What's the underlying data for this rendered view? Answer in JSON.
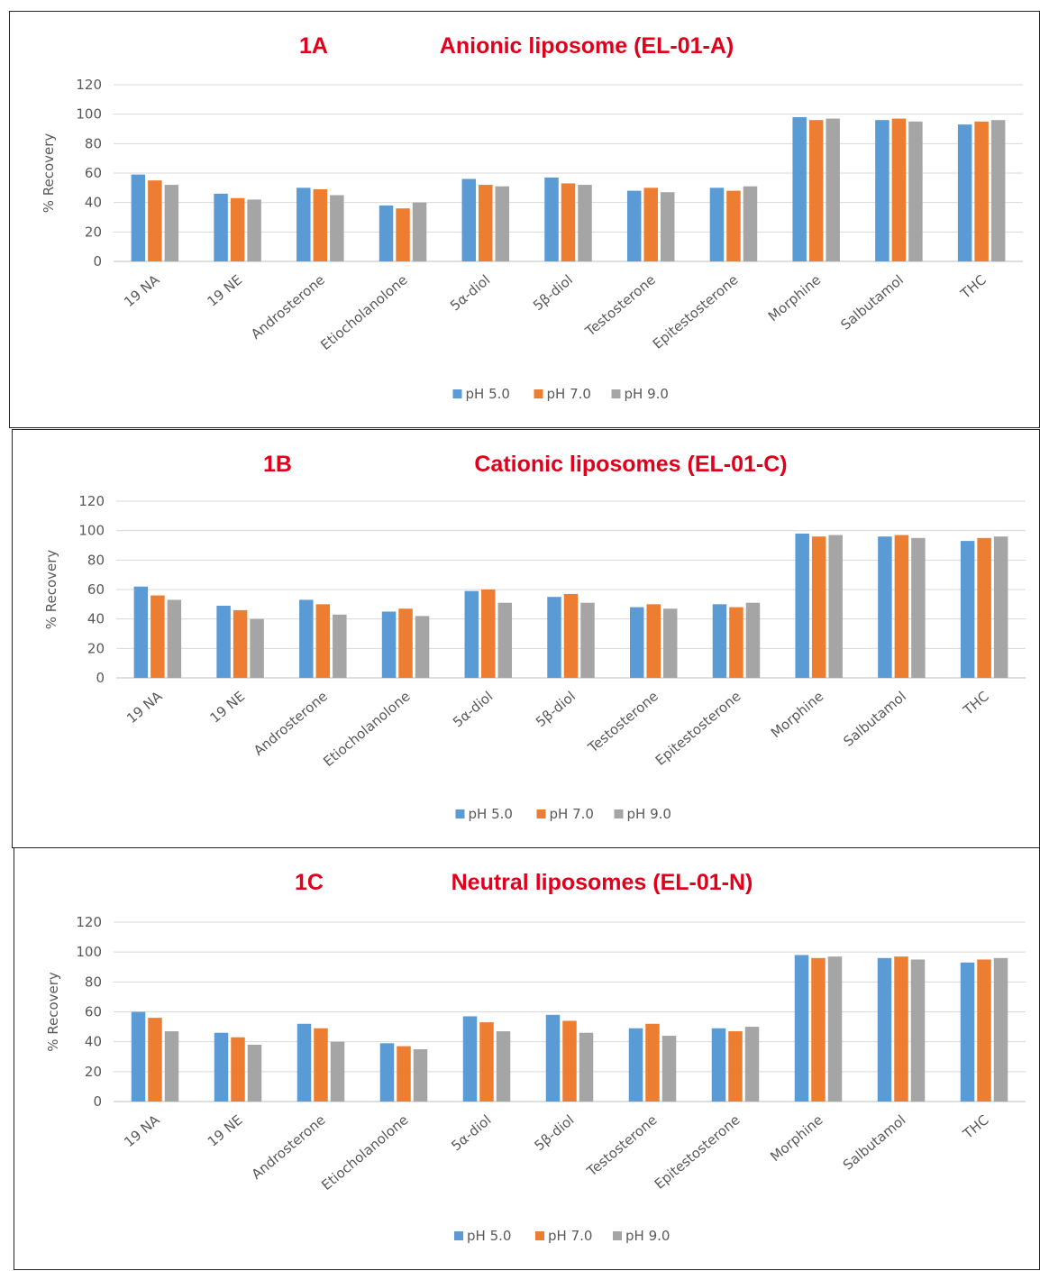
{
  "colors": {
    "pH 5.0": "#5b9bd5",
    "pH 7.0": "#ed7d31",
    "pH 9.0": "#a5a5a5"
  },
  "chart_data": [
    {
      "type": "bar",
      "panel_label": "1A",
      "title": "Anionic liposome (EL-01-A)",
      "ylabel": "% Recovery",
      "ylim": [
        0,
        120
      ],
      "yticks": [
        0,
        20,
        40,
        60,
        80,
        100,
        120
      ],
      "grid": true,
      "legend": "bottom",
      "categories": [
        "19 NA",
        "19 NE",
        "Androsterone",
        "Etiocholanolone",
        "5α-diol",
        "5β-diol",
        "Testosterone",
        "Epitestosterone",
        "Morphine",
        "Salbutamol",
        "THC"
      ],
      "series": [
        {
          "name": "pH 5.0",
          "values": [
            59,
            46,
            50,
            38,
            56,
            57,
            48,
            50,
            98,
            96,
            93
          ]
        },
        {
          "name": "pH 7.0",
          "values": [
            55,
            43,
            49,
            36,
            52,
            53,
            50,
            48,
            96,
            97,
            95
          ]
        },
        {
          "name": "pH 9.0",
          "values": [
            52,
            42,
            45,
            40,
            51,
            52,
            47,
            51,
            97,
            95,
            96
          ]
        }
      ]
    },
    {
      "type": "bar",
      "panel_label": "1B",
      "title": "Cationic liposomes (EL-01-C)",
      "ylabel": "% Recovery",
      "ylim": [
        0,
        120
      ],
      "yticks": [
        0,
        20,
        40,
        60,
        80,
        100,
        120
      ],
      "grid": true,
      "legend": "bottom",
      "categories": [
        "19 NA",
        "19 NE",
        "Androsterone",
        "Etiocholanolone",
        "5α-diol",
        "5β-diol",
        "Testosterone",
        "Epitestosterone",
        "Morphine",
        "Salbutamol",
        "THC"
      ],
      "series": [
        {
          "name": "pH 5.0",
          "values": [
            62,
            49,
            53,
            45,
            59,
            55,
            48,
            50,
            98,
            96,
            93
          ]
        },
        {
          "name": "pH 7.0",
          "values": [
            56,
            46,
            50,
            47,
            60,
            57,
            50,
            48,
            96,
            97,
            95
          ]
        },
        {
          "name": "pH 9.0",
          "values": [
            53,
            40,
            43,
            42,
            51,
            51,
            47,
            51,
            97,
            95,
            96
          ]
        }
      ]
    },
    {
      "type": "bar",
      "panel_label": "1C",
      "title": "Neutral liposomes (EL-01-N)",
      "ylabel": "% Recovery",
      "ylim": [
        0,
        120
      ],
      "yticks": [
        0,
        20,
        40,
        60,
        80,
        100,
        120
      ],
      "grid": true,
      "legend": "bottom",
      "categories": [
        "19 NA",
        "19 NE",
        "Androsterone",
        "Etiocholanolone",
        "5α-diol",
        "5β-diol",
        "Testosterone",
        "Epitestosterone",
        "Morphine",
        "Salbutamol",
        "THC"
      ],
      "series": [
        {
          "name": "pH 5.0",
          "values": [
            60,
            46,
            52,
            39,
            57,
            58,
            49,
            49,
            98,
            96,
            93
          ]
        },
        {
          "name": "pH 7.0",
          "values": [
            56,
            43,
            49,
            37,
            53,
            54,
            52,
            47,
            96,
            97,
            95
          ]
        },
        {
          "name": "pH 9.0",
          "values": [
            47,
            38,
            40,
            35,
            47,
            46,
            44,
            50,
            97,
            95,
            96
          ]
        }
      ]
    }
  ]
}
